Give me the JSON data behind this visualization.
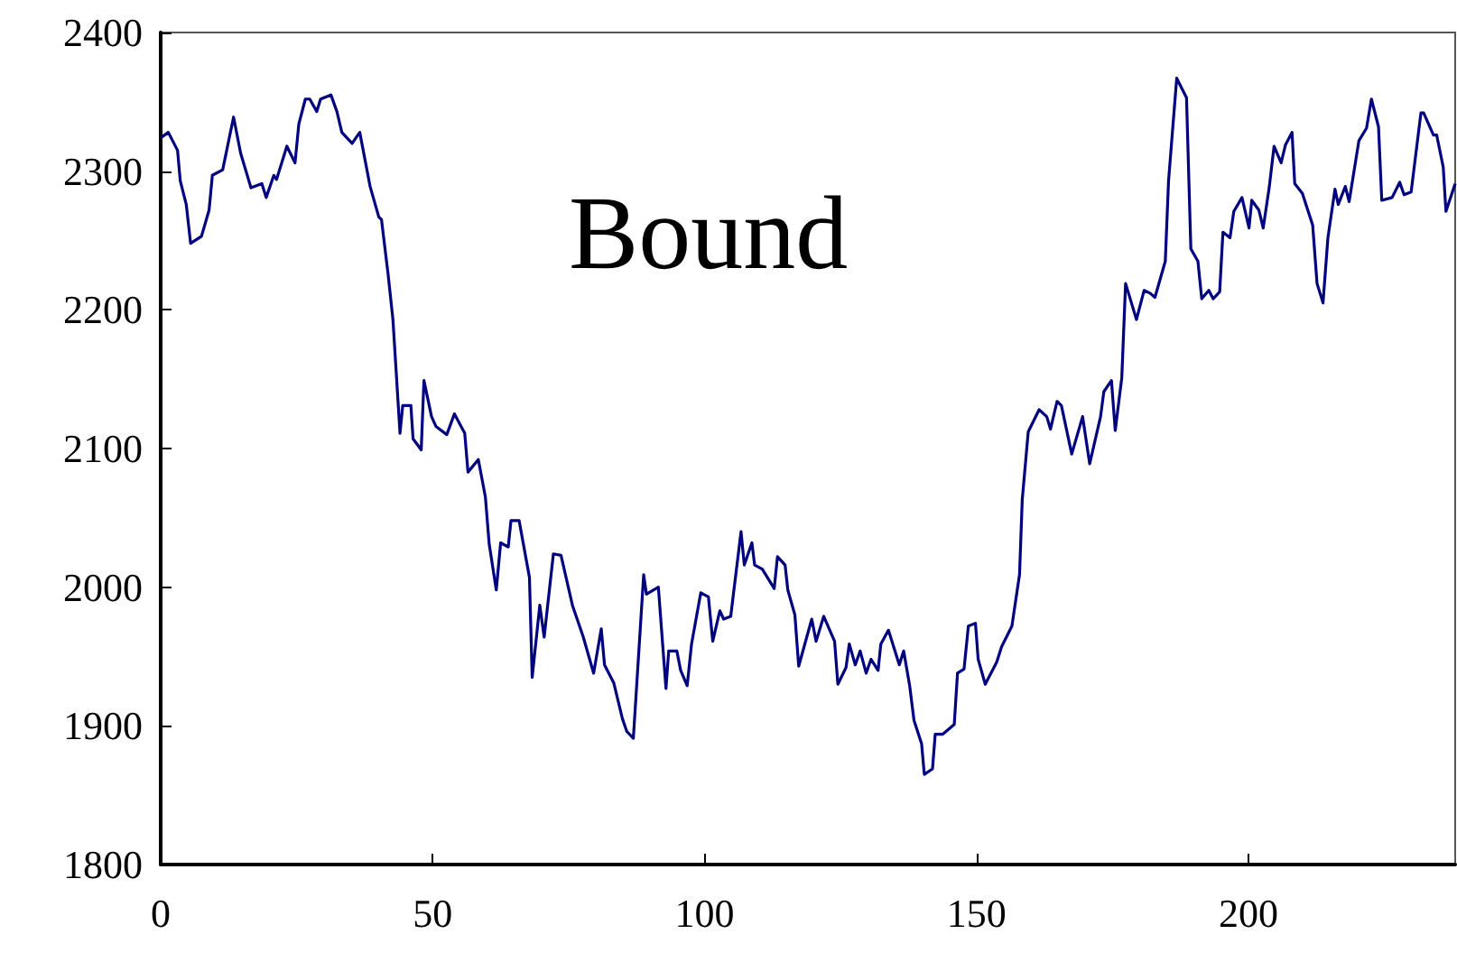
{
  "chart_data": {
    "type": "line",
    "annotations": [
      "Bound"
    ],
    "xlim": [
      0,
      238
    ],
    "xticks": [
      0,
      50,
      100,
      150,
      200
    ],
    "ylim": [
      1800,
      2400
    ],
    "yticks": [
      1800,
      1900,
      2000,
      2100,
      2200,
      2300,
      2400
    ],
    "grid": false,
    "marker": "none",
    "line_style": "solid",
    "series": [
      {
        "color": "#000080",
        "x": [
          0,
          1.4,
          3.1,
          3.6,
          4.7,
          5.5,
          7.5,
          8.9,
          9.5,
          11.4,
          13.4,
          14.7,
          16.6,
          18.6,
          19.4,
          20.8,
          21.3,
          23.2,
          24.7,
          25.4,
          26.6,
          27.4,
          28.7,
          29.4,
          31.3,
          32.4,
          33.3,
          35.2,
          36.6,
          38.5,
          40.1,
          40.6,
          41.8,
          42.7,
          44,
          44.5,
          46,
          46.4,
          47.9,
          48.4,
          49.8,
          50.6,
          52.6,
          54,
          55.9,
          56.5,
          58.4,
          59.7,
          60.4,
          61.7,
          62.5,
          63.9,
          64.4,
          65.9,
          67.8,
          68.3,
          69.7,
          70.5,
          72.2,
          73.6,
          75.7,
          77.7,
          79.6,
          81,
          81.6,
          83.3,
          84.9,
          85.7,
          86.9,
          88.8,
          89.3,
          91.5,
          92.9,
          93.4,
          94.9,
          95.6,
          96.8,
          97.6,
          99.3,
          100.7,
          101.5,
          102.8,
          103.5,
          104.8,
          106.7,
          107.3,
          108.7,
          109.2,
          110.6,
          112.8,
          113.4,
          114.8,
          115.3,
          116.6,
          117.3,
          119.7,
          120.5,
          121.9,
          123.9,
          124.5,
          126,
          126.6,
          127.7,
          128.6,
          129.7,
          130.6,
          131.9,
          132.4,
          133.8,
          135.8,
          136.6,
          137.7,
          138.5,
          139.9,
          140.4,
          141.9,
          142.4,
          143.8,
          145.9,
          146.5,
          147.7,
          148.5,
          149.8,
          150.3,
          151.6,
          153.7,
          154.6,
          156.5,
          157.9,
          158.4,
          159.5,
          161.5,
          162.9,
          163.6,
          164.8,
          165.6,
          167.5,
          169.5,
          170.8,
          172.8,
          173.4,
          174.8,
          175.5,
          176.7,
          177.4,
          179.4,
          180.8,
          181.9,
          182.8,
          184.7,
          185.3,
          186.8,
          188.6,
          189.4,
          190.7,
          191.4,
          192.7,
          193.5,
          194.7,
          195.3,
          196.6,
          197.3,
          198.8,
          200.1,
          200.6,
          201.9,
          202.7,
          203.8,
          204.7,
          206,
          206.8,
          208,
          208.5,
          209.9,
          211.8,
          212.6,
          213.7,
          214.6,
          215.9,
          216.5,
          217.8,
          218.5,
          220.3,
          221.7,
          222.6,
          223.9,
          224.5,
          226.4,
          227.8,
          228.6,
          229.9,
          231.7,
          232.2,
          234,
          234.6,
          235.8,
          236.3,
          238
        ],
        "values": [
          2324,
          2328,
          2315,
          2293,
          2276,
          2248,
          2253,
          2272,
          2297,
          2301,
          2339,
          2313,
          2288,
          2291,
          2281,
          2297,
          2294,
          2318,
          2306,
          2334,
          2352,
          2352,
          2343,
          2352,
          2355,
          2343,
          2328,
          2320,
          2328,
          2289,
          2267,
          2265,
          2226,
          2193,
          2111,
          2131,
          2131,
          2107,
          2099,
          2149,
          2123,
          2116,
          2110,
          2125,
          2111,
          2083,
          2092,
          2065,
          2031,
          1998,
          2032,
          2029,
          2048,
          2048,
          2007,
          1935,
          1987,
          1964,
          2024,
          2023,
          1987,
          1964,
          1938,
          1970,
          1944,
          1931,
          1905,
          1896,
          1891,
          2009,
          1995,
          2000,
          1927,
          1954,
          1954,
          1940,
          1929,
          1959,
          1996,
          1993,
          1961,
          1983,
          1977,
          1979,
          2040,
          2016,
          2032,
          2016,
          2013,
          1999,
          2022,
          2016,
          1998,
          1980,
          1943,
          1977,
          1961,
          1979,
          1961,
          1930,
          1942,
          1959,
          1944,
          1954,
          1938,
          1948,
          1940,
          1959,
          1969,
          1944,
          1954,
          1929,
          1904,
          1887,
          1865,
          1869,
          1894,
          1894,
          1901,
          1938,
          1941,
          1972,
          1974,
          1948,
          1930,
          1946,
          1957,
          1972,
          2009,
          2063,
          2112,
          2128,
          2123,
          2114,
          2134,
          2131,
          2096,
          2123,
          2089,
          2123,
          2141,
          2149,
          2113,
          2151,
          2219,
          2193,
          2214,
          2212,
          2209,
          2235,
          2293,
          2367,
          2353,
          2244,
          2235,
          2208,
          2214,
          2208,
          2213,
          2256,
          2252,
          2271,
          2281,
          2259,
          2279,
          2272,
          2259,
          2288,
          2318,
          2306,
          2319,
          2328,
          2291,
          2284,
          2261,
          2219,
          2205,
          2252,
          2287,
          2276,
          2289,
          2278,
          2322,
          2331,
          2352,
          2332,
          2279,
          2281,
          2292,
          2283,
          2285,
          2342,
          2342,
          2326,
          2326,
          2303,
          2271,
          2291
        ]
      }
    ]
  }
}
